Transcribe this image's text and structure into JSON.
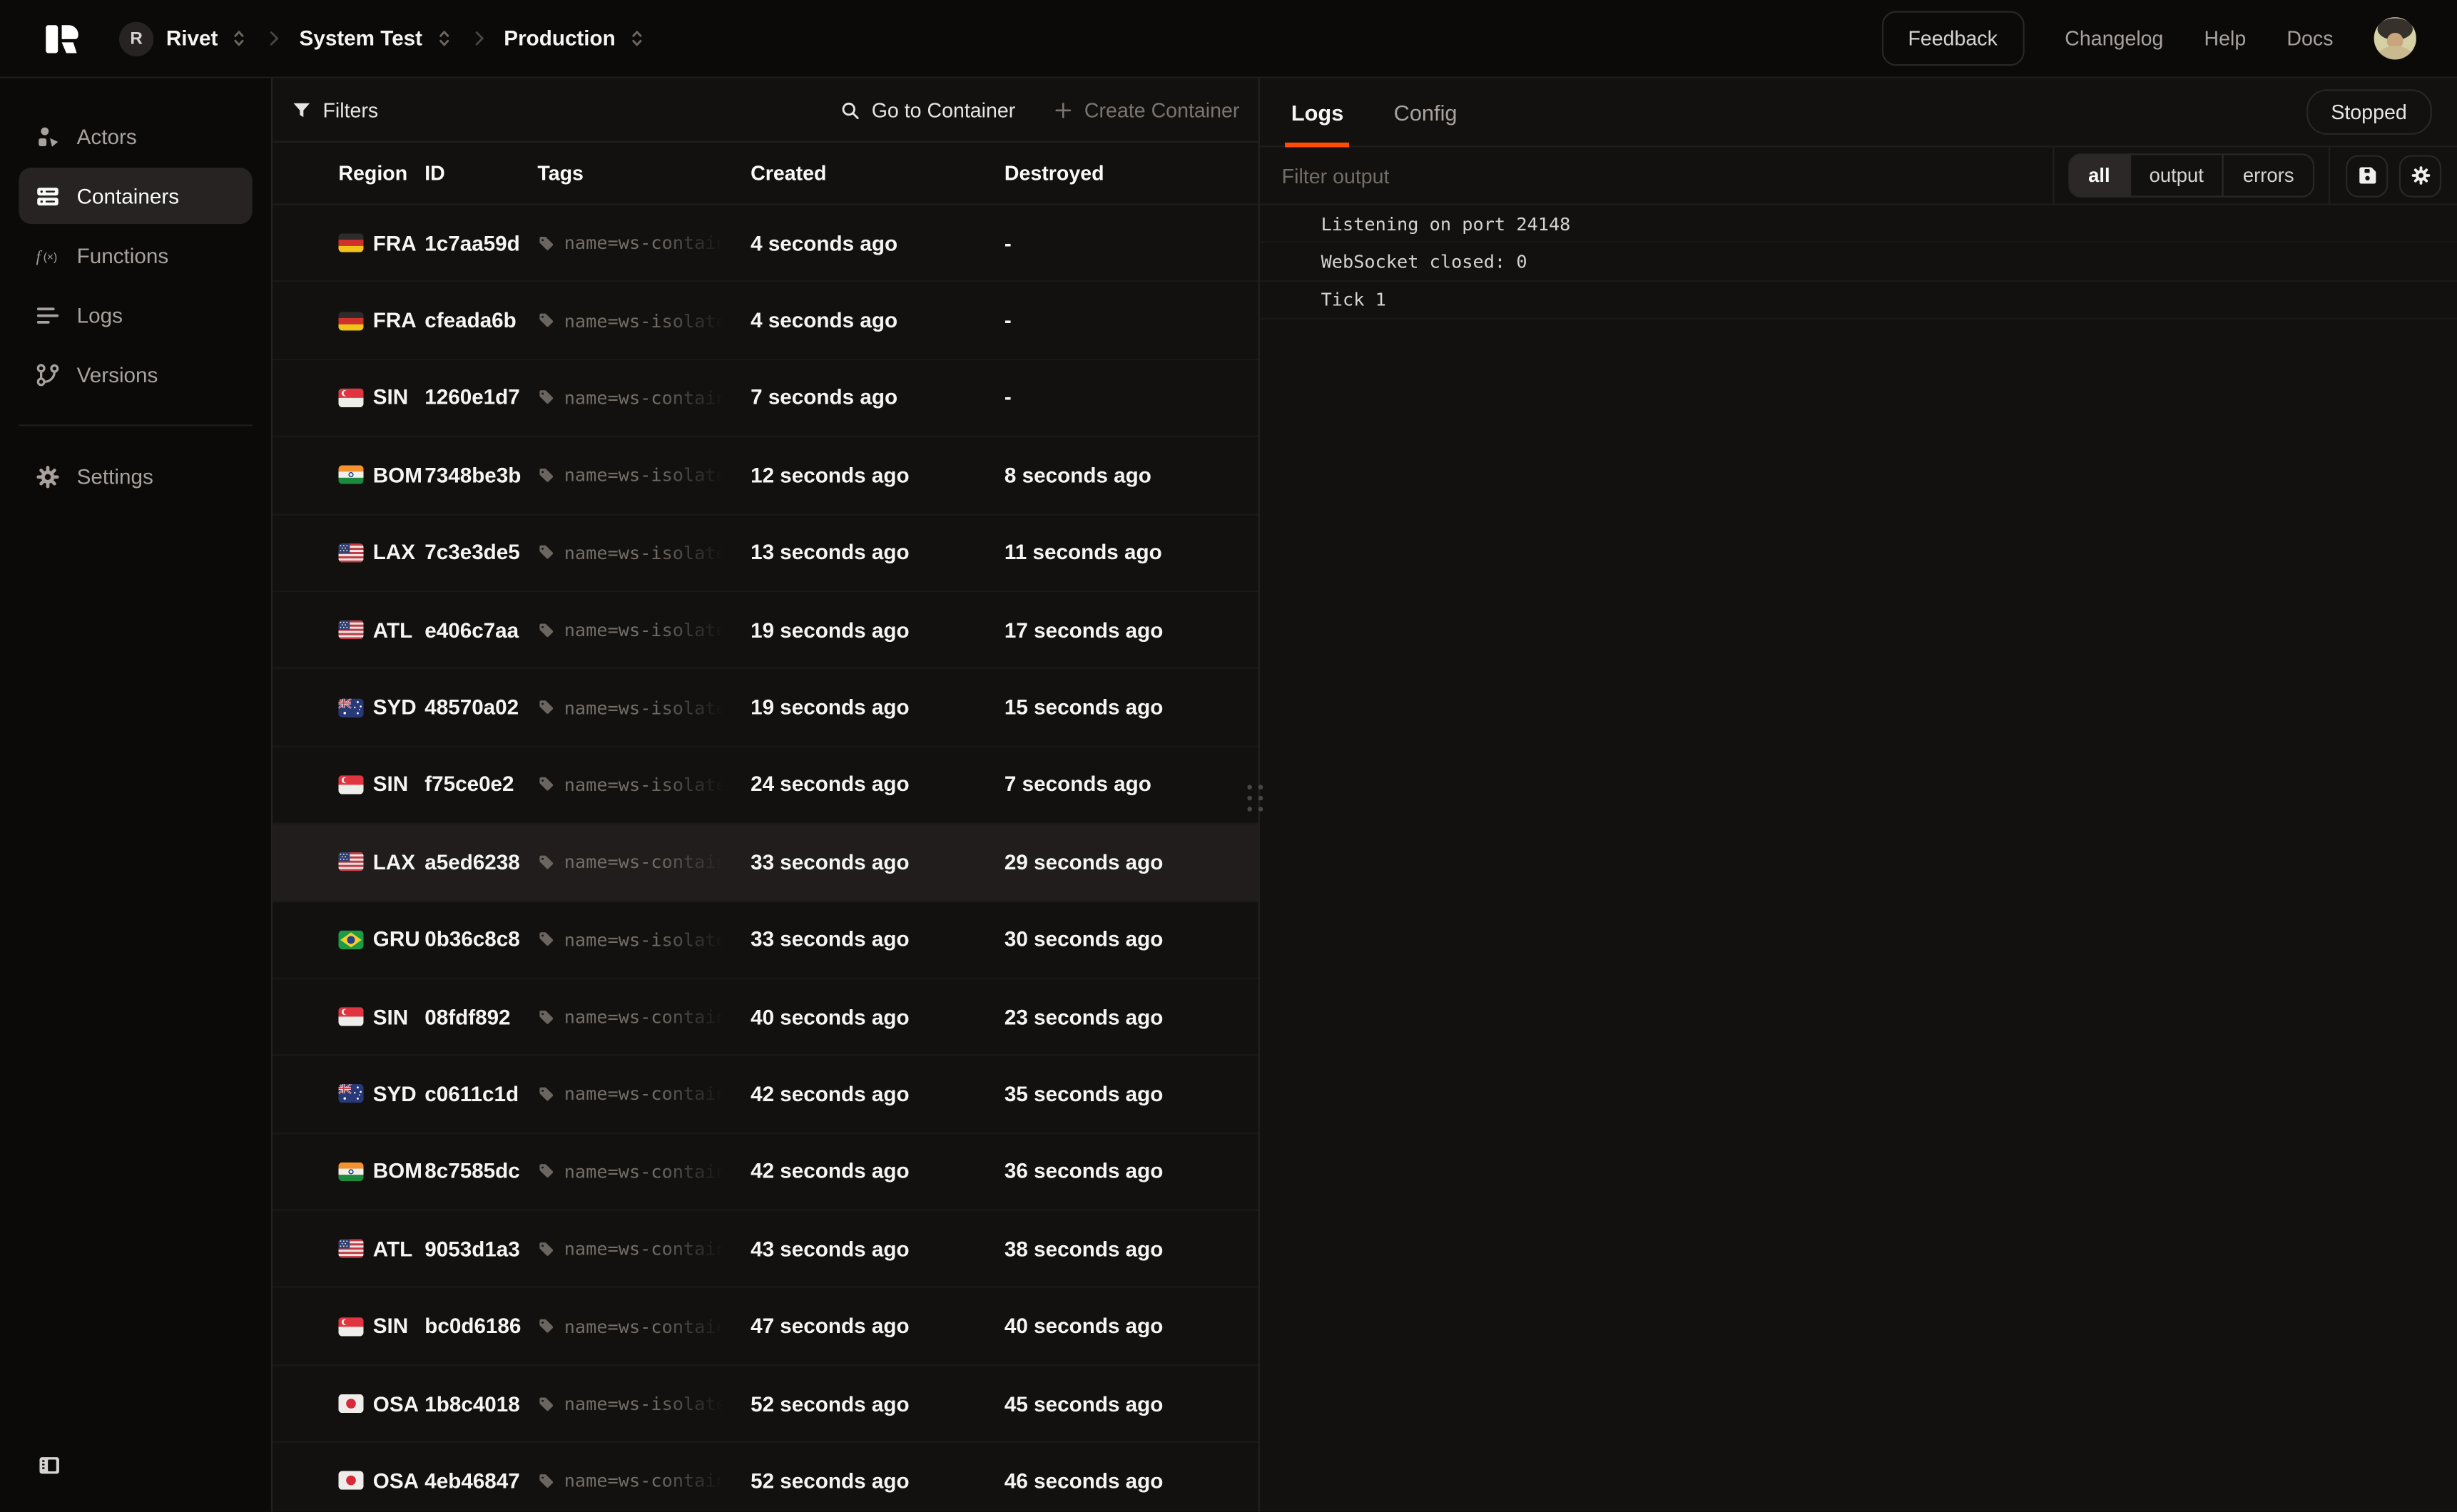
{
  "brand": {
    "logo_letter": "R"
  },
  "topbar": {
    "breadcrumb": [
      {
        "avatar": "R",
        "label": "Rivet"
      },
      {
        "label": "System Test"
      },
      {
        "label": "Production"
      }
    ],
    "feedback_label": "Feedback",
    "links": [
      "Changelog",
      "Help",
      "Docs"
    ]
  },
  "sidebar": {
    "items": [
      {
        "label": "Actors",
        "icon": "actors-icon",
        "active": false
      },
      {
        "label": "Containers",
        "icon": "containers-icon",
        "active": true
      },
      {
        "label": "Functions",
        "icon": "functions-icon",
        "active": false
      },
      {
        "label": "Logs",
        "icon": "logs-icon",
        "active": false
      },
      {
        "label": "Versions",
        "icon": "versions-icon",
        "active": false
      }
    ],
    "footer_items": [
      {
        "label": "Settings",
        "icon": "settings-gear-icon",
        "active": false
      }
    ]
  },
  "table": {
    "filters_label": "Filters",
    "go_to_container_label": "Go to Container",
    "create_container_label": "Create Container",
    "columns": [
      "Region",
      "ID",
      "Tags",
      "Created",
      "Destroyed"
    ],
    "rows": [
      {
        "region": "FRA",
        "flag": "de",
        "id": "1c7aa59d",
        "tag": "name=ws-container",
        "created": "4 seconds ago",
        "destroyed": "-",
        "selected": false
      },
      {
        "region": "FRA",
        "flag": "de",
        "id": "cfeada6b",
        "tag": "name=ws-isolate",
        "created": "4 seconds ago",
        "destroyed": "-",
        "selected": false
      },
      {
        "region": "SIN",
        "flag": "sg",
        "id": "1260e1d7",
        "tag": "name=ws-container",
        "created": "7 seconds ago",
        "destroyed": "-",
        "selected": false
      },
      {
        "region": "BOM",
        "flag": "in",
        "id": "7348be3b",
        "tag": "name=ws-isolate",
        "created": "12 seconds ago",
        "destroyed": "8 seconds ago",
        "selected": false
      },
      {
        "region": "LAX",
        "flag": "us",
        "id": "7c3e3de5",
        "tag": "name=ws-isolate",
        "created": "13 seconds ago",
        "destroyed": "11 seconds ago",
        "selected": false
      },
      {
        "region": "ATL",
        "flag": "us",
        "id": "e406c7aa",
        "tag": "name=ws-isolate",
        "created": "19 seconds ago",
        "destroyed": "17 seconds ago",
        "selected": false
      },
      {
        "region": "SYD",
        "flag": "au",
        "id": "48570a02",
        "tag": "name=ws-isolate",
        "created": "19 seconds ago",
        "destroyed": "15 seconds ago",
        "selected": false
      },
      {
        "region": "SIN",
        "flag": "sg",
        "id": "f75ce0e2",
        "tag": "name=ws-isolate",
        "created": "24 seconds ago",
        "destroyed": "7 seconds ago",
        "selected": false
      },
      {
        "region": "LAX",
        "flag": "us",
        "id": "a5ed6238",
        "tag": "name=ws-container",
        "created": "33 seconds ago",
        "destroyed": "29 seconds ago",
        "selected": true
      },
      {
        "region": "GRU",
        "flag": "br",
        "id": "0b36c8c8",
        "tag": "name=ws-isolate",
        "created": "33 seconds ago",
        "destroyed": "30 seconds ago",
        "selected": false
      },
      {
        "region": "SIN",
        "flag": "sg",
        "id": "08fdf892",
        "tag": "name=ws-container",
        "created": "40 seconds ago",
        "destroyed": "23 seconds ago",
        "selected": false
      },
      {
        "region": "SYD",
        "flag": "au",
        "id": "c0611c1d",
        "tag": "name=ws-container",
        "created": "42 seconds ago",
        "destroyed": "35 seconds ago",
        "selected": false
      },
      {
        "region": "BOM",
        "flag": "in",
        "id": "8c7585dc",
        "tag": "name=ws-container",
        "created": "42 seconds ago",
        "destroyed": "36 seconds ago",
        "selected": false
      },
      {
        "region": "ATL",
        "flag": "us",
        "id": "9053d1a3",
        "tag": "name=ws-container",
        "created": "43 seconds ago",
        "destroyed": "38 seconds ago",
        "selected": false
      },
      {
        "region": "SIN",
        "flag": "sg",
        "id": "bc0d6186",
        "tag": "name=ws-container",
        "created": "47 seconds ago",
        "destroyed": "40 seconds ago",
        "selected": false
      },
      {
        "region": "OSA",
        "flag": "jp",
        "id": "1b8c4018",
        "tag": "name=ws-isolate",
        "created": "52 seconds ago",
        "destroyed": "45 seconds ago",
        "selected": false
      },
      {
        "region": "OSA",
        "flag": "jp",
        "id": "4eb46847",
        "tag": "name=ws-container",
        "created": "52 seconds ago",
        "destroyed": "46 seconds ago",
        "selected": false
      }
    ]
  },
  "panel": {
    "tabs": [
      {
        "label": "Logs",
        "active": true
      },
      {
        "label": "Config",
        "active": false
      }
    ],
    "status_badge": "Stopped",
    "filter_placeholder": "Filter output",
    "log_filters": [
      {
        "label": "all",
        "active": true
      },
      {
        "label": "output",
        "active": false
      },
      {
        "label": "errors",
        "active": false
      }
    ],
    "log_lines": [
      "Listening on port 24148",
      "WebSocket closed: 0",
      "Tick 1"
    ]
  },
  "colors": {
    "accent": "#ff4c00",
    "status_ok": "#f5f5f4"
  }
}
